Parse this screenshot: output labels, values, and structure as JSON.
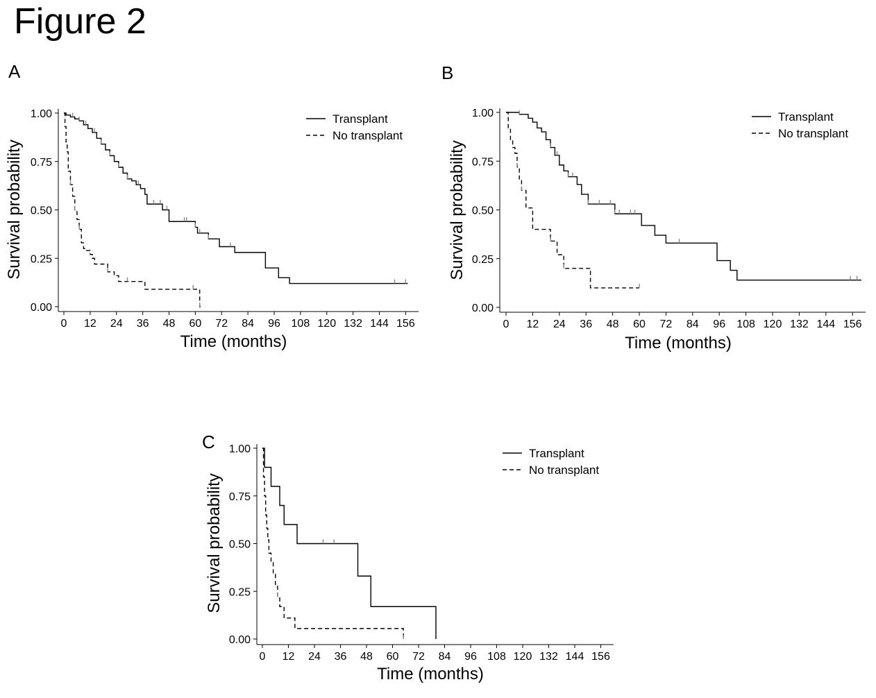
{
  "figure": {
    "title": "Figure 2"
  },
  "colors": {
    "line": "#000000",
    "censor": "#888888",
    "background": "#ffffff"
  },
  "chart_data": [
    {
      "type": "line",
      "panel": "A",
      "title": "",
      "xlabel": "Time (months)",
      "ylabel": "Survival probability",
      "xlim": [
        0,
        160
      ],
      "ylim": [
        0,
        1
      ],
      "xticks": [
        0,
        12,
        24,
        36,
        48,
        60,
        72,
        84,
        96,
        108,
        120,
        132,
        144,
        156
      ],
      "yticks": [
        0,
        0.25,
        0.5,
        0.75,
        1
      ],
      "ytick_labels": [
        "0.00",
        "0.25",
        "0.50",
        "0.75",
        "1.00"
      ],
      "legend": {
        "position": "top-right"
      },
      "grid": false,
      "series": [
        {
          "name": "Transplant",
          "style": "solid",
          "steps": [
            [
              0,
              1.0
            ],
            [
              1,
              0.99
            ],
            [
              3,
              0.98
            ],
            [
              5,
              0.97
            ],
            [
              7,
              0.96
            ],
            [
              9,
              0.94
            ],
            [
              11,
              0.92
            ],
            [
              13,
              0.9
            ],
            [
              15,
              0.87
            ],
            [
              17,
              0.84
            ],
            [
              19,
              0.81
            ],
            [
              21,
              0.78
            ],
            [
              23,
              0.75
            ],
            [
              25,
              0.72
            ],
            [
              27,
              0.69
            ],
            [
              29,
              0.66
            ],
            [
              31,
              0.65
            ],
            [
              33,
              0.63
            ],
            [
              35,
              0.61
            ],
            [
              37,
              0.58
            ],
            [
              38,
              0.53
            ],
            [
              45,
              0.5
            ],
            [
              48,
              0.44
            ],
            [
              60,
              0.41
            ],
            [
              61,
              0.38
            ],
            [
              66,
              0.35
            ],
            [
              71,
              0.31
            ],
            [
              78,
              0.28
            ],
            [
              92,
              0.2
            ],
            [
              98,
              0.15
            ],
            [
              103,
              0.12
            ],
            [
              157,
              0.12
            ]
          ],
          "censor_times": [
            4,
            7,
            10,
            14,
            17,
            21,
            25,
            29,
            34,
            41,
            44,
            47,
            55,
            56,
            60,
            62,
            66,
            76,
            151,
            156
          ]
        },
        {
          "name": "No transplant",
          "style": "dashed",
          "steps": [
            [
              0,
              1.0
            ],
            [
              0.5,
              0.93
            ],
            [
              1,
              0.85
            ],
            [
              1.5,
              0.8
            ],
            [
              2,
              0.7
            ],
            [
              3,
              0.63
            ],
            [
              4,
              0.57
            ],
            [
              5,
              0.5
            ],
            [
              6,
              0.45
            ],
            [
              7,
              0.4
            ],
            [
              8,
              0.33
            ],
            [
              9,
              0.3
            ],
            [
              10,
              0.29
            ],
            [
              12,
              0.27
            ],
            [
              13,
              0.25
            ],
            [
              14,
              0.22
            ],
            [
              20,
              0.18
            ],
            [
              23,
              0.16
            ],
            [
              25,
              0.13
            ],
            [
              37,
              0.09
            ],
            [
              62,
              0.0
            ]
          ],
          "end_time": 63,
          "censor_times": [
            3,
            5,
            7,
            20,
            29,
            59,
            62
          ]
        }
      ]
    },
    {
      "type": "line",
      "panel": "B",
      "title": "",
      "xlabel": "Time (months)",
      "ylabel": "Survival probability",
      "xlim": [
        0,
        160
      ],
      "ylim": [
        0,
        1
      ],
      "xticks": [
        0,
        12,
        24,
        36,
        48,
        60,
        72,
        84,
        96,
        108,
        120,
        132,
        144,
        156
      ],
      "yticks": [
        0,
        0.25,
        0.5,
        0.75,
        1
      ],
      "ytick_labels": [
        "0.00",
        "0.25",
        "0.50",
        "0.75",
        "1.00"
      ],
      "legend": {
        "position": "top-right"
      },
      "grid": false,
      "series": [
        {
          "name": "Transplant",
          "style": "solid",
          "steps": [
            [
              0,
              1.0
            ],
            [
              6,
              0.99
            ],
            [
              10,
              0.97
            ],
            [
              12,
              0.95
            ],
            [
              14,
              0.92
            ],
            [
              16,
              0.9
            ],
            [
              18,
              0.86
            ],
            [
              20,
              0.82
            ],
            [
              22,
              0.78
            ],
            [
              24,
              0.73
            ],
            [
              26,
              0.7
            ],
            [
              28,
              0.67
            ],
            [
              32,
              0.63
            ],
            [
              34,
              0.58
            ],
            [
              37,
              0.53
            ],
            [
              49,
              0.48
            ],
            [
              61,
              0.42
            ],
            [
              67,
              0.37
            ],
            [
              72,
              0.33
            ],
            [
              95,
              0.24
            ],
            [
              101,
              0.19
            ],
            [
              104,
              0.14
            ],
            [
              160,
              0.14
            ]
          ],
          "censor_times": [
            6,
            20,
            23,
            28,
            30,
            37,
            42,
            47,
            49,
            51,
            56,
            58,
            78,
            155,
            158
          ]
        },
        {
          "name": "No transplant",
          "style": "dashed",
          "steps": [
            [
              0,
              1.0
            ],
            [
              1,
              0.92
            ],
            [
              2,
              0.86
            ],
            [
              3,
              0.82
            ],
            [
              4,
              0.79
            ],
            [
              5,
              0.72
            ],
            [
              6,
              0.65
            ],
            [
              7,
              0.6
            ],
            [
              9,
              0.51
            ],
            [
              12,
              0.4
            ],
            [
              20,
              0.34
            ],
            [
              23,
              0.27
            ],
            [
              26,
              0.2
            ],
            [
              38,
              0.1
            ],
            [
              60,
              0.1
            ]
          ],
          "end_time": 60,
          "censor_times": [
            5,
            7,
            20,
            26,
            60
          ]
        }
      ]
    },
    {
      "type": "line",
      "panel": "C",
      "title": "",
      "xlabel": "Time (months)",
      "ylabel": "Survival probability",
      "xlim": [
        0,
        160
      ],
      "ylim": [
        0,
        1
      ],
      "xticks": [
        0,
        12,
        24,
        36,
        48,
        60,
        72,
        84,
        96,
        108,
        120,
        132,
        144,
        156
      ],
      "yticks": [
        0,
        0.25,
        0.5,
        0.75,
        1
      ],
      "ytick_labels": [
        "0.00",
        "0.25",
        "0.50",
        "0.75",
        "1.00"
      ],
      "legend": {
        "position": "top-right"
      },
      "grid": false,
      "series": [
        {
          "name": "Transplant",
          "style": "solid",
          "steps": [
            [
              0,
              1.0
            ],
            [
              1,
              0.9
            ],
            [
              4,
              0.8
            ],
            [
              8,
              0.7
            ],
            [
              10,
              0.6
            ],
            [
              16,
              0.5
            ],
            [
              44,
              0.33
            ],
            [
              50,
              0.17
            ],
            [
              80,
              0.0
            ]
          ],
          "censor_times": [
            28,
            33
          ]
        },
        {
          "name": "No transplant",
          "style": "dashed",
          "steps": [
            [
              0,
              1.0
            ],
            [
              0.5,
              0.85
            ],
            [
              1,
              0.75
            ],
            [
              1.5,
              0.65
            ],
            [
              2,
              0.58
            ],
            [
              2.5,
              0.52
            ],
            [
              3,
              0.45
            ],
            [
              4,
              0.4
            ],
            [
              5,
              0.34
            ],
            [
              6,
              0.28
            ],
            [
              7,
              0.22
            ],
            [
              8,
              0.17
            ],
            [
              10,
              0.11
            ],
            [
              15,
              0.055
            ],
            [
              65,
              0.0
            ]
          ],
          "end_time": 65,
          "censor_times": [
            7,
            65
          ]
        }
      ]
    }
  ]
}
